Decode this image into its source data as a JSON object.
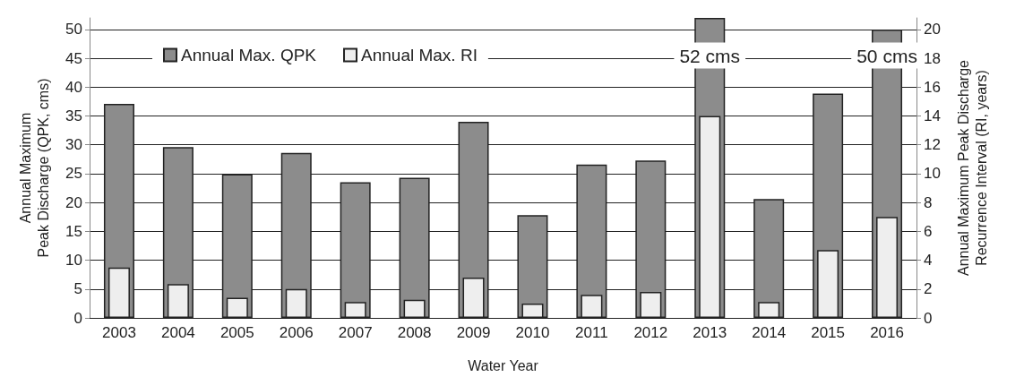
{
  "chart_data": {
    "type": "bar",
    "xlabel": "Water Year",
    "ylabel": "Annual Maximum\nPeak Discharge (QPK, cms)",
    "y2label": "Annual Maximum Peak Discharge\nRecurrence Interval (RI, years)",
    "categories": [
      "2003",
      "2004",
      "2005",
      "2006",
      "2007",
      "2008",
      "2009",
      "2010",
      "2011",
      "2012",
      "2013",
      "2014",
      "2015",
      "2016"
    ],
    "series": [
      {
        "name": "Annual Max. QPK",
        "color": "#8c8c8c",
        "values": [
          37.1,
          29.6,
          24.9,
          28.6,
          23.5,
          24.3,
          34.0,
          17.8,
          26.6,
          27.3,
          52,
          20.6,
          38.9,
          50
        ],
        "value_labels": [
          null,
          null,
          null,
          null,
          null,
          null,
          null,
          null,
          null,
          null,
          "52 cms",
          null,
          null,
          "50 cms"
        ]
      },
      {
        "name": "Annual Max. RI",
        "color": "#eeeeee",
        "axis": "y2",
        "values": [
          3.5,
          2.35,
          1.4,
          2.0,
          1.1,
          1.25,
          2.8,
          1.0,
          1.6,
          1.8,
          14.0,
          1.1,
          4.7,
          7.0
        ]
      }
    ],
    "ylim": [
      0,
      52
    ],
    "yticks": [
      0,
      5,
      10,
      15,
      20,
      25,
      30,
      35,
      40,
      45,
      50
    ],
    "y2lim": [
      0,
      20.8
    ],
    "y2ticks": [
      0,
      2,
      4,
      6,
      8,
      10,
      12,
      14,
      16,
      18,
      20
    ],
    "grid": "y",
    "legend": "top"
  }
}
